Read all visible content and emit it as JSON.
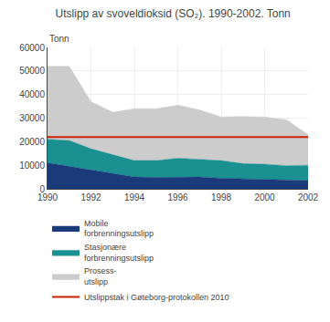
{
  "chart_data": {
    "type": "area",
    "stacked": true,
    "title": "Utslipp av svoveldioksid (SO₂). 1990-2002. Tonn",
    "ylabel": "Tonn",
    "x": [
      1990,
      1991,
      1992,
      1993,
      1994,
      1995,
      1996,
      1997,
      1998,
      1999,
      2000,
      2001,
      2002
    ],
    "series": [
      {
        "name": "Mobile\nforbrenningsutslipp",
        "color": "#1a3a7a",
        "values": [
          11000,
          9500,
          8000,
          6500,
          5000,
          4800,
          5000,
          5000,
          4500,
          4200,
          4000,
          3800,
          3500
        ]
      },
      {
        "name": "Stasjonære\nforbrenningsutslipp",
        "color": "#1a9090",
        "values": [
          10000,
          11000,
          9000,
          8000,
          7000,
          7200,
          8000,
          7500,
          7500,
          6500,
          6500,
          6000,
          6500
        ]
      },
      {
        "name": "Prosess-\nutslipp",
        "color": "#cccccc",
        "values": [
          31000,
          31500,
          20000,
          18000,
          22000,
          22000,
          22500,
          21000,
          18500,
          20000,
          20000,
          19500,
          13000
        ]
      },
      {
        "name": "Utslippstak i Gøteborg-protokollen 2010",
        "type": "line",
        "color": "#cc2200",
        "values": [
          22000,
          22000,
          22000,
          22000,
          22000,
          22000,
          22000,
          22000,
          22000,
          22000,
          22000,
          22000,
          22000
        ]
      }
    ],
    "xlim": [
      1990,
      2002
    ],
    "xticks": [
      1990,
      1992,
      1994,
      1996,
      1998,
      2000,
      2002
    ],
    "ylim": [
      0,
      60000
    ],
    "yticks": [
      0,
      10000,
      20000,
      30000,
      40000,
      50000,
      60000
    ],
    "grid": true,
    "legend": "bottom"
  }
}
